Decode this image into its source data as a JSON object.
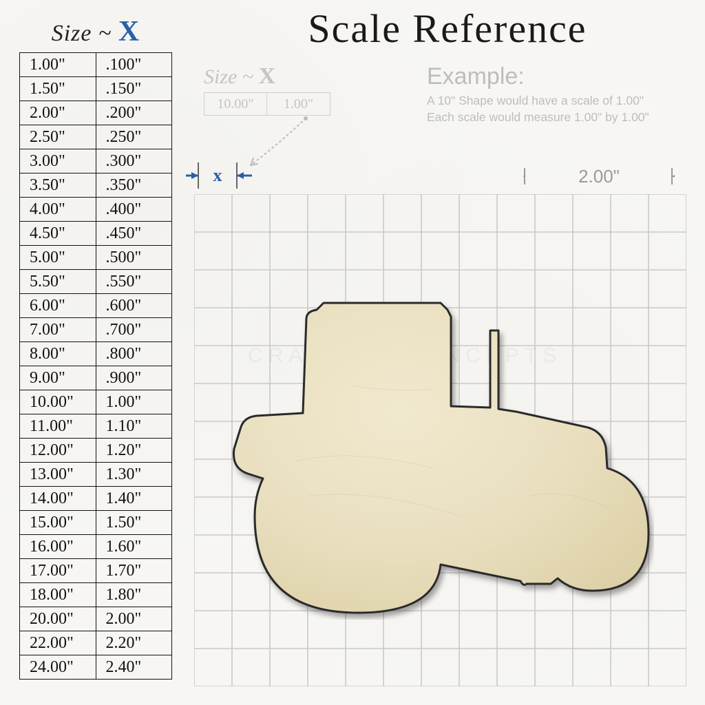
{
  "title": "Scale Reference",
  "size_label_prefix": "Size ~ ",
  "size_label_X": "X",
  "table": {
    "columns": [
      "Size",
      "X"
    ],
    "rows": [
      [
        "1.00\"",
        ".100\""
      ],
      [
        "1.50\"",
        ".150\""
      ],
      [
        "2.00\"",
        ".200\""
      ],
      [
        "2.50\"",
        ".250\""
      ],
      [
        "3.00\"",
        ".300\""
      ],
      [
        "3.50\"",
        ".350\""
      ],
      [
        "4.00\"",
        ".400\""
      ],
      [
        "4.50\"",
        ".450\""
      ],
      [
        "5.00\"",
        ".500\""
      ],
      [
        "5.50\"",
        ".550\""
      ],
      [
        "6.00\"",
        ".600\""
      ],
      [
        "7.00\"",
        ".700\""
      ],
      [
        "8.00\"",
        ".800\""
      ],
      [
        "9.00\"",
        ".900\""
      ],
      [
        "10.00\"",
        "1.00\""
      ],
      [
        "11.00\"",
        "1.10\""
      ],
      [
        "12.00\"",
        "1.20\""
      ],
      [
        "13.00\"",
        "1.30\""
      ],
      [
        "14.00\"",
        "1.40\""
      ],
      [
        "15.00\"",
        "1.50\""
      ],
      [
        "16.00\"",
        "1.60\""
      ],
      [
        "17.00\"",
        "1.70\""
      ],
      [
        "18.00\"",
        "1.80\""
      ],
      [
        "20.00\"",
        "2.00\""
      ],
      [
        "22.00\"",
        "2.20\""
      ],
      [
        "24.00\"",
        "2.40\""
      ]
    ],
    "cell_font_size_pt": 18,
    "border_color": "#111111"
  },
  "mini_table": {
    "left": "10.00\"",
    "right": "1.00\"",
    "color": "#c4c4c4"
  },
  "example": {
    "title": "Example:",
    "line1": "A 10\" Shape would have a scale of 1.00\"",
    "line2": "Each scale would measure 1.00\" by 1.00\"",
    "text_color": "#bdbdbd"
  },
  "x_marker": {
    "label": "x",
    "arrow_color": "#2a5fa8",
    "tick_color": "#666666"
  },
  "right_dimension": {
    "label": "2.00\"",
    "color": "#9a9a9a"
  },
  "grid": {
    "cells": 13,
    "line_color": "#c9c9c9",
    "background": "transparent"
  },
  "shape": {
    "name": "tractor",
    "fill": "#e9dfbf",
    "fill_gradient_light": "#f1e9ce",
    "fill_gradient_dark": "#dccfa5",
    "stroke": "#2b2b2b",
    "stroke_width": 3
  },
  "watermark": "CRAFTCUTCONCEPTS",
  "colors": {
    "background": "#f7f6f3",
    "title_color": "#1a1a1a",
    "accent_blue": "#2a5fa8"
  },
  "typography": {
    "title_font": "Brush Script MT",
    "title_size_pt": 44,
    "table_font": "Comic Sans MS",
    "example_font": "Arial"
  }
}
